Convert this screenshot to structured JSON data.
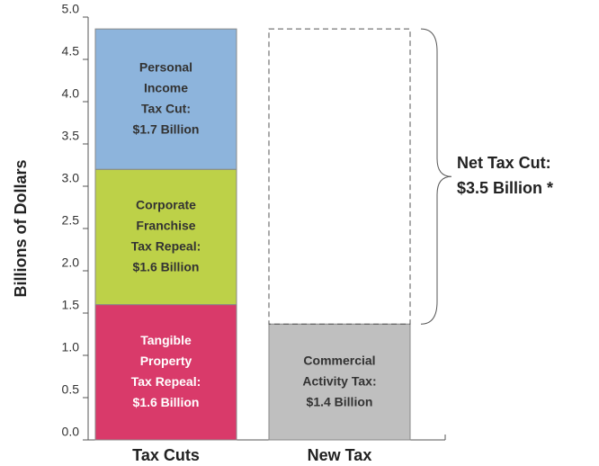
{
  "chart_data": {
    "type": "stacked_bar",
    "y_label": "Billions of Dollars",
    "categories": [
      "Tax Cuts",
      "New Tax"
    ],
    "ylim": [
      0,
      5
    ],
    "yticks": [
      {
        "value": 0,
        "label": "0.0"
      },
      0.5,
      {
        "value": 1,
        "label": "1.0"
      },
      1.5,
      {
        "value": 2,
        "label": "2.0"
      },
      2.5,
      {
        "value": 3,
        "label": "3.0"
      },
      3.5,
      {
        "value": 4,
        "label": "4.0"
      },
      4.5,
      {
        "value": 5,
        "label": "5.0"
      }
    ],
    "series": [
      {
        "color": "#d93a6a",
        "text_color": "#ffffff",
        "values": [
          1.6,
          null
        ],
        "value_labels": [
          [
            "Tangible",
            "Property",
            "Tax Repeal:",
            "$1.6 Billion"
          ],
          null
        ]
      },
      {
        "color": "#bdd148",
        "text_color": "#333333",
        "values": [
          1.6,
          null
        ],
        "value_labels": [
          [
            "Corporate",
            "Franchise",
            "Tax Repeal:",
            "$1.6 Billion"
          ],
          null
        ]
      },
      {
        "color": "#8db4dc",
        "text_color": "#333333",
        "values": [
          1.66,
          null
        ],
        "value_labels": [
          [
            "Personal",
            "Income",
            "Tax Cut:",
            "$1.7  Billion"
          ],
          null
        ]
      },
      {
        "color": "#bfbfbf",
        "text_color": "#333333",
        "values": [
          null,
          1.37
        ],
        "value_labels": [
          null,
          [
            "Commercial",
            "Activity Tax:",
            "$1.4 Billion"
          ]
        ]
      },
      {
        "color": "none",
        "dashed": true,
        "values": [
          null,
          3.49
        ],
        "value_labels": [
          null,
          [
            "Net Tax Cut:",
            "$3.5 Billion *"
          ]
        ],
        "label_outside": true
      }
    ]
  }
}
